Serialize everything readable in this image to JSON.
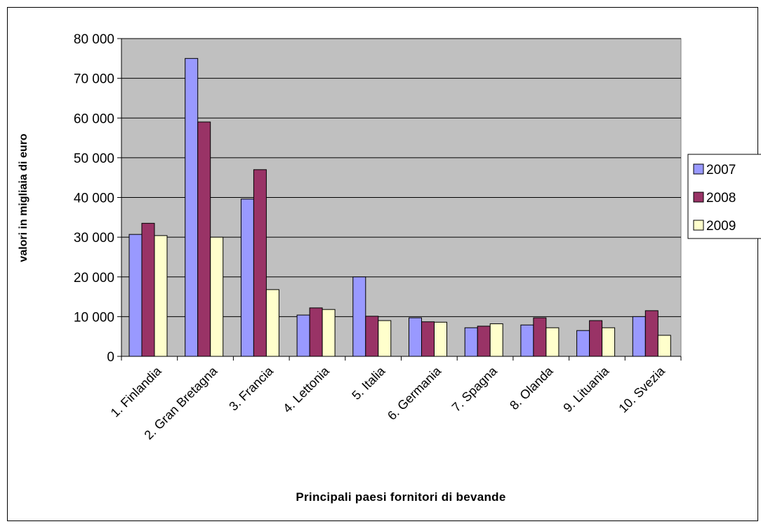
{
  "chart_data": {
    "type": "bar",
    "title": "",
    "xlabel": "Principali paesi fornitori di bevande",
    "ylabel": "valori in migliaia di euro",
    "ylim": [
      0,
      80000
    ],
    "ytick_values": [
      0,
      10000,
      20000,
      30000,
      40000,
      50000,
      60000,
      70000,
      80000
    ],
    "ytick_labels": [
      "0",
      "10 000",
      "20 000",
      "30 000",
      "40 000",
      "50 000",
      "60 000",
      "70 000",
      "80 000"
    ],
    "grid": true,
    "legend_position": "right",
    "plot_background": "#c0c0c0",
    "categories": [
      "1. Finlandia",
      "2. Gran Bretagna",
      "3. Francia",
      "4. Lettonia",
      "5. Italia",
      "6. Germania",
      "7. Spagna",
      "8. Olanda",
      "9. Lituania",
      "10. Svezia"
    ],
    "series": [
      {
        "name": "2007",
        "color": "#9999ff",
        "values": [
          30700,
          75000,
          39600,
          10400,
          20000,
          9700,
          7200,
          7900,
          6500,
          10000
        ]
      },
      {
        "name": "2008",
        "color": "#993366",
        "values": [
          33500,
          59000,
          47000,
          12200,
          10100,
          8700,
          7600,
          9700,
          9000,
          11500
        ]
      },
      {
        "name": "2009",
        "color": "#ffffcc",
        "values": [
          30400,
          30000,
          16800,
          11800,
          9000,
          8600,
          8200,
          7200,
          7200,
          5300
        ]
      }
    ]
  }
}
